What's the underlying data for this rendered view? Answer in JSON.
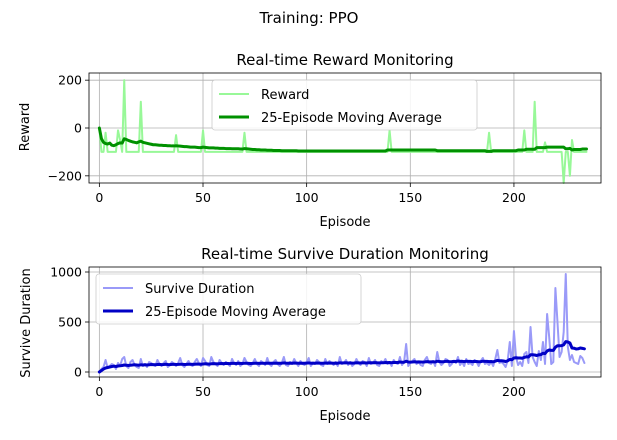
{
  "suptitle": "Training: PPO",
  "chart_data": [
    {
      "type": "line",
      "title": "Real-time Reward Monitoring",
      "xlabel": "Episode",
      "ylabel": "Reward",
      "xlim": [
        -5,
        242
      ],
      "ylim": [
        -230,
        230
      ],
      "xticks": [
        0,
        50,
        100,
        150,
        200
      ],
      "yticks": [
        -200,
        0,
        200
      ],
      "grid": true,
      "legend": "top-center",
      "series": [
        {
          "name": "Reward",
          "color": "#98f898",
          "values": [
            0,
            -100,
            -100,
            -20,
            -100,
            -100,
            -100,
            -100,
            -100,
            -10,
            -50,
            -100,
            200,
            -100,
            -100,
            -100,
            -100,
            -100,
            -100,
            -100,
            110,
            -100,
            -100,
            -100,
            -100,
            -100,
            -100,
            -100,
            -100,
            -100,
            -100,
            -100,
            -100,
            -100,
            -100,
            -100,
            -100,
            -30,
            -100,
            -100,
            -100,
            -100,
            -100,
            -100,
            -100,
            -100,
            -100,
            -100,
            -100,
            -100,
            -10,
            -100,
            -100,
            -100,
            -100,
            -100,
            -100,
            -100,
            -100,
            -100,
            -100,
            -100,
            -100,
            -100,
            -100,
            -100,
            -100,
            -100,
            -100,
            -100,
            -20,
            -100,
            -100,
            -100,
            -100,
            -100,
            -100,
            -100,
            -100,
            -100,
            -100,
            -100,
            -100,
            -100,
            -100,
            -100,
            -100,
            -100,
            -100,
            -100,
            -100,
            -100,
            -100,
            -100,
            -100,
            -100,
            -100,
            -100,
            -100,
            -100,
            -100,
            -100,
            -100,
            -100,
            -100,
            -100,
            -100,
            -100,
            -100,
            -100,
            -100,
            -100,
            -100,
            -100,
            -100,
            -100,
            -100,
            -100,
            -100,
            -100,
            -100,
            -100,
            -100,
            -100,
            -100,
            -100,
            -100,
            -100,
            -100,
            -100,
            -100,
            -100,
            -100,
            -100,
            -100,
            -100,
            -100,
            -100,
            -100,
            -100,
            -10,
            -100,
            -100,
            -100,
            -100,
            -100,
            -100,
            -100,
            -100,
            -100,
            -100,
            -100,
            -100,
            -100,
            -100,
            -100,
            -100,
            -100,
            -100,
            -100,
            -100,
            -100,
            -100,
            -100,
            -100,
            -100,
            -100,
            -100,
            -100,
            -100,
            -100,
            -100,
            -100,
            -100,
            -100,
            -100,
            -100,
            -100,
            -100,
            -100,
            -100,
            -100,
            -100,
            -100,
            -100,
            -100,
            -100,
            -100,
            -20,
            -100,
            -100,
            -100,
            -100,
            -100,
            -100,
            -100,
            -100,
            -100,
            -100,
            -100,
            -100,
            -100,
            -100,
            -100,
            -100,
            -10,
            -100,
            -100,
            -100,
            -100,
            110,
            -100,
            -100,
            -100,
            -100,
            -60,
            -100,
            -100,
            -100,
            -100,
            -100,
            -100,
            -100,
            -100,
            -230,
            -100,
            -100,
            -200,
            -50,
            -100,
            -100,
            -100,
            -100,
            -100,
            -100,
            -100
          ]
        },
        {
          "name": "25-Episode Moving Average",
          "color": "#009100",
          "values": [
            0,
            -45,
            -60,
            -65,
            -67,
            -63,
            -72,
            -74,
            -70,
            -65,
            -62,
            -63,
            -45,
            -48,
            -52,
            -55,
            -58,
            -60,
            -62,
            -58,
            -55,
            -60,
            -62,
            -64,
            -66,
            -68,
            -70,
            -70,
            -71,
            -72,
            -72,
            -73,
            -73,
            -74,
            -74,
            -75,
            -75,
            -74,
            -75,
            -76,
            -77,
            -78,
            -78,
            -79,
            -80,
            -80,
            -80,
            -81,
            -82,
            -82,
            -80,
            -81,
            -82,
            -83,
            -83,
            -83,
            -84,
            -84,
            -85,
            -85,
            -85,
            -86,
            -86,
            -86,
            -87,
            -87,
            -87,
            -87,
            -88,
            -88,
            -86,
            -87,
            -88,
            -89,
            -90,
            -90,
            -91,
            -91,
            -92,
            -92,
            -92,
            -93,
            -93,
            -93,
            -94,
            -94,
            -94,
            -94,
            -95,
            -95,
            -95,
            -95,
            -95,
            -95,
            -95,
            -95,
            -96,
            -96,
            -96,
            -96,
            -96,
            -96,
            -96,
            -96,
            -96,
            -96,
            -96,
            -96,
            -96,
            -96,
            -96,
            -96,
            -96,
            -96,
            -96,
            -96,
            -96,
            -96,
            -96,
            -96,
            -96,
            -96,
            -96,
            -96,
            -96,
            -96,
            -96,
            -96,
            -96,
            -96,
            -96,
            -96,
            -96,
            -96,
            -96,
            -96,
            -96,
            -96,
            -96,
            -92,
            -92,
            -92,
            -92,
            -92,
            -92,
            -92,
            -92,
            -92,
            -92,
            -92,
            -92,
            -92,
            -92,
            -92,
            -92,
            -92,
            -92,
            -92,
            -92,
            -92,
            -92,
            -92,
            -92,
            -95,
            -95,
            -95,
            -95,
            -95,
            -95,
            -95,
            -95,
            -95,
            -95,
            -95,
            -95,
            -95,
            -95,
            -95,
            -95,
            -95,
            -95,
            -95,
            -95,
            -95,
            -95,
            -95,
            -95,
            -98,
            -98,
            -98,
            -95,
            -95,
            -95,
            -95,
            -95,
            -95,
            -95,
            -95,
            -95,
            -95,
            -95,
            -95,
            -92,
            -92,
            -92,
            -92,
            -89,
            -89,
            -89,
            -89,
            -89,
            -82,
            -82,
            -82,
            -82,
            -82,
            -80,
            -80,
            -80,
            -80,
            -80,
            -80,
            -80,
            -80,
            -80,
            -87,
            -87,
            -85,
            -92,
            -90,
            -90,
            -90,
            -90,
            -88,
            -88,
            -88
          ]
        }
      ]
    },
    {
      "type": "line",
      "title": "Real-time Survive Duration Monitoring",
      "xlabel": "Episode",
      "ylabel": "Survive Duration",
      "xlim": [
        -5,
        242
      ],
      "ylim": [
        -50,
        1050
      ],
      "xticks": [
        0,
        50,
        100,
        150,
        200
      ],
      "yticks": [
        0,
        500,
        1000
      ],
      "grid": true,
      "legend": "top-left",
      "series": [
        {
          "name": "Survive Duration",
          "color": "#9a9af8",
          "values": [
            0,
            30,
            50,
            120,
            40,
            60,
            80,
            70,
            30,
            90,
            60,
            130,
            150,
            60,
            40,
            100,
            120,
            70,
            50,
            40,
            130,
            60,
            80,
            50,
            100,
            90,
            70,
            60,
            120,
            80,
            60,
            90,
            110,
            50,
            70,
            100,
            80,
            60,
            90,
            140,
            70,
            50,
            80,
            110,
            70,
            60,
            100,
            130,
            90,
            60,
            140,
            110,
            70,
            60,
            150,
            100,
            80,
            60,
            120,
            90,
            70,
            100,
            80,
            60,
            130,
            90,
            70,
            110,
            60,
            80,
            140,
            100,
            70,
            60,
            90,
            130,
            80,
            60,
            110,
            90,
            70,
            140,
            80,
            60,
            100,
            120,
            80,
            60,
            90,
            150,
            70,
            60,
            100,
            80,
            130,
            90,
            60,
            110,
            80,
            70,
            100,
            140,
            60,
            90,
            80,
            120,
            100,
            70,
            60,
            130,
            80,
            110,
            90,
            70,
            100,
            60,
            150,
            80,
            90,
            120,
            70,
            100,
            60,
            80,
            130,
            90,
            70,
            110,
            100,
            60,
            140,
            80,
            90,
            120,
            70,
            60,
            110,
            90,
            130,
            80,
            100,
            60,
            120,
            90,
            80,
            150,
            70,
            100,
            280,
            60,
            90,
            110,
            130,
            80,
            100,
            70,
            60,
            120,
            150,
            90,
            80,
            110,
            60,
            200,
            100,
            70,
            90,
            130,
            120,
            60,
            80,
            110,
            90,
            150,
            70,
            100,
            60,
            130,
            80,
            90,
            70,
            120,
            100,
            60,
            110,
            140,
            80,
            90,
            70,
            100,
            60,
            130,
            220,
            90,
            100,
            80,
            50,
            120,
            300,
            60,
            410,
            150,
            70,
            100,
            60,
            180,
            200,
            90,
            450,
            150,
            100,
            60,
            210,
            120,
            300,
            80,
            580,
            350,
            80,
            100,
            840,
            500,
            150,
            200,
            400,
            980,
            250,
            120,
            170,
            100,
            90,
            80,
            160,
            140,
            90
          ]
        },
        {
          "name": "25-Episode Moving Average",
          "color": "#0000c5",
          "values": [
            0,
            15,
            30,
            40,
            45,
            50,
            55,
            58,
            55,
            60,
            62,
            65,
            70,
            68,
            65,
            68,
            70,
            72,
            70,
            68,
            72,
            70,
            72,
            70,
            72,
            75,
            74,
            73,
            75,
            76,
            74,
            75,
            77,
            75,
            74,
            76,
            77,
            75,
            76,
            78,
            77,
            75,
            76,
            78,
            77,
            76,
            78,
            80,
            79,
            77,
            80,
            82,
            81,
            79,
            82,
            84,
            83,
            81,
            84,
            85,
            84,
            86,
            85,
            84,
            87,
            86,
            85,
            87,
            86,
            85,
            88,
            87,
            86,
            85,
            86,
            88,
            87,
            86,
            88,
            87,
            86,
            89,
            88,
            87,
            88,
            89,
            88,
            87,
            88,
            91,
            89,
            88,
            89,
            88,
            90,
            89,
            88,
            89,
            88,
            87,
            89,
            91,
            88,
            89,
            88,
            90,
            89,
            88,
            87,
            90,
            89,
            90,
            89,
            88,
            89,
            88,
            92,
            90,
            91,
            92,
            90,
            91,
            89,
            90,
            92,
            91,
            90,
            92,
            91,
            90,
            93,
            92,
            92,
            94,
            92,
            91,
            93,
            92,
            95,
            94,
            95,
            93,
            96,
            95,
            95,
            100,
            97,
            98,
            108,
            100,
            99,
            100,
            102,
            100,
            101,
            100,
            99,
            101,
            104,
            102,
            101,
            103,
            100,
            108,
            105,
            103,
            103,
            106,
            107,
            103,
            104,
            106,
            105,
            110,
            106,
            107,
            104,
            108,
            106,
            106,
            104,
            106,
            105,
            103,
            104,
            108,
            106,
            106,
            104,
            105,
            102,
            108,
            116,
            112,
            112,
            110,
            105,
            112,
            126,
            122,
            140,
            142,
            140,
            140,
            138,
            146,
            152,
            150,
            172,
            172,
            170,
            165,
            172,
            174,
            188,
            184,
            210,
            220,
            216,
            216,
            248,
            262,
            262,
            264,
            272,
            304,
            300,
            290,
            240,
            238,
            230,
            232,
            240,
            236,
            232
          ]
        }
      ]
    }
  ]
}
